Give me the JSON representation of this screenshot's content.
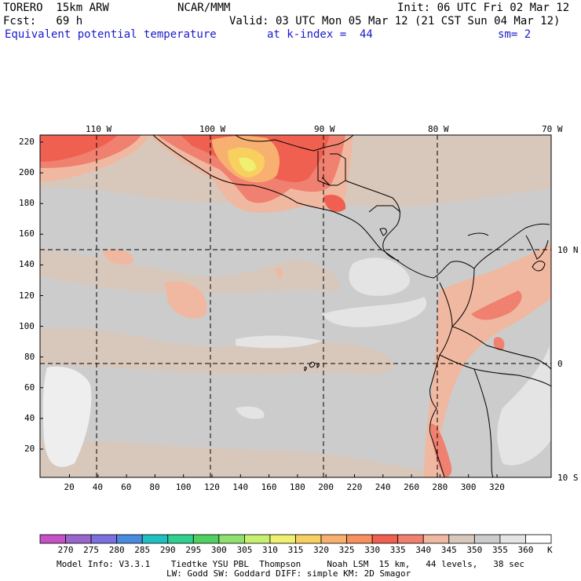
{
  "header": {
    "model": "TORERO  15km ARW",
    "org": "NCAR/MMM",
    "init": "Init: 06 UTC Fri 02 Mar 12",
    "fcst": "Fcst:   69 h",
    "valid": "Valid: 03 UTC Mon 05 Mar 12 (21 CST Sun 04 Mar 12)",
    "field": "Equivalent potential temperature",
    "level": "at k-index =  44",
    "smooth": "sm= 2"
  },
  "map": {
    "top_lon_labels": [
      "110 W",
      "100 W",
      "90 W",
      "80 W",
      "70 W"
    ],
    "right_lat_labels": [
      "10 N",
      "0",
      "10 S"
    ],
    "left_ticks": [
      "220",
      "200",
      "180",
      "160",
      "140",
      "120",
      "100",
      "80",
      "60",
      "40",
      "20"
    ],
    "bottom_ticks": [
      "20",
      "40",
      "60",
      "80",
      "100",
      "120",
      "140",
      "160",
      "180",
      "200",
      "220",
      "240",
      "260",
      "280",
      "300",
      "320"
    ]
  },
  "colorbar": {
    "labels": [
      "270",
      "275",
      "280",
      "285",
      "290",
      "295",
      "300",
      "305",
      "310",
      "315",
      "320",
      "325",
      "330",
      "335",
      "340",
      "345",
      "350",
      "355",
      "360"
    ],
    "unit": "K",
    "colors": [
      "#c653c6",
      "#9966cc",
      "#7a70e0",
      "#4a8be0",
      "#20c0c0",
      "#30d090",
      "#50d060",
      "#90e070",
      "#c8f070",
      "#f0f070",
      "#f8d060",
      "#f8b070",
      "#f89060",
      "#f06050",
      "#f08070",
      "#f0b8a0",
      "#d8c8bc",
      "#cccccc",
      "#e4e4e4",
      "#ffffff"
    ]
  },
  "footer": {
    "line1": "Model Info: V3.3.1    Tiedtke YSU PBL  Thompson     Noah LSM  15 km,   44 levels,   38 sec",
    "line2": "LW: Godd SW: Goddard DIFF: simple KM: 2D Smagor"
  }
}
